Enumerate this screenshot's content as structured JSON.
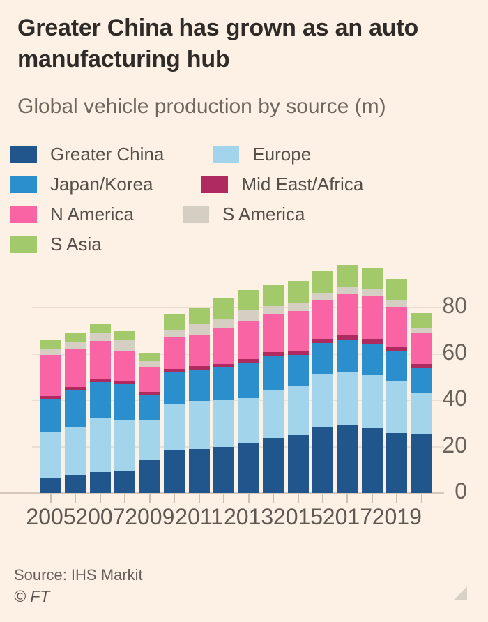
{
  "header": {
    "title": "Greater China has grown as an auto manufacturing hub",
    "subtitle": "Global vehicle production by source (m)"
  },
  "footer": {
    "source": "Source: IHS Markit",
    "copyright": "© FT"
  },
  "colors": {
    "background": "#fdf0e4",
    "title_text": "#2e2b28",
    "subtitle_text": "#6e6861",
    "axis_text": "#6a635c",
    "gridline": "#ecdfd1",
    "tick": "#cdc0b2"
  },
  "chart_data": {
    "type": "bar",
    "stacked": true,
    "title": "Global vehicle production by source (m)",
    "xlabel": "",
    "ylabel": "",
    "grid": true,
    "legend_position": "top",
    "ylim": [
      0,
      100
    ],
    "y_ticks": [
      0,
      20,
      40,
      60,
      80
    ],
    "categories": [
      2005,
      2006,
      2007,
      2008,
      2009,
      2010,
      2011,
      2012,
      2013,
      2014,
      2015,
      2016,
      2017,
      2018,
      2019,
      2020
    ],
    "x_tick_labels": [
      "2005",
      "2007",
      "2009",
      "2011",
      "2013",
      "2015",
      "2017",
      "2019"
    ],
    "series": [
      {
        "name": "Greater China",
        "color": "#20568c",
        "values": [
          6.2,
          7.9,
          8.9,
          9.3,
          14.2,
          18.5,
          19.1,
          19.8,
          21.7,
          23.9,
          24.9,
          28.3,
          29.3,
          28.0,
          26.0,
          25.6
        ]
      },
      {
        "name": "Europe",
        "color": "#a2d5ec",
        "values": [
          20.4,
          20.6,
          23.2,
          22.4,
          17.2,
          20.0,
          20.6,
          20.2,
          19.2,
          20.5,
          21.1,
          23.2,
          22.7,
          23.0,
          22.2,
          17.5
        ]
      },
      {
        "name": "Japan/Korea",
        "color": "#2b8fce",
        "values": [
          14.1,
          15.7,
          15.8,
          15.2,
          11.0,
          13.6,
          13.2,
          14.4,
          15.0,
          14.6,
          13.5,
          13.4,
          14.0,
          13.4,
          13.1,
          10.7
        ]
      },
      {
        "name": "Mid East/Africa",
        "color": "#af2a5e",
        "values": [
          1.3,
          1.5,
          1.5,
          1.5,
          1.3,
          1.6,
          1.8,
          1.4,
          1.8,
          1.7,
          1.7,
          1.8,
          2.0,
          2.3,
          2.0,
          1.8
        ]
      },
      {
        "name": "N America",
        "color": "#f964a5",
        "values": [
          17.5,
          16.4,
          16.2,
          13.2,
          10.9,
          13.4,
          13.4,
          15.6,
          16.7,
          16.4,
          17.5,
          16.8,
          17.8,
          18.2,
          17.0,
          13.4
        ]
      },
      {
        "name": "S America",
        "color": "#d4cec3",
        "values": [
          2.8,
          3.2,
          3.6,
          4.4,
          2.6,
          3.5,
          4.7,
          3.5,
          4.7,
          3.6,
          3.3,
          3.1,
          3.4,
          3.1,
          3.2,
          2.2
        ]
      },
      {
        "name": "S Asia",
        "color": "#a2c96a",
        "values": [
          3.8,
          3.9,
          4.0,
          4.3,
          3.5,
          6.6,
          6.9,
          9.0,
          8.5,
          9.2,
          9.6,
          9.4,
          9.3,
          9.4,
          8.9,
          6.6
        ]
      }
    ],
    "legend_rows": [
      [
        "Greater China",
        "Europe"
      ],
      [
        "Japan/Korea",
        "Mid East/Africa"
      ],
      [
        "N America",
        "S America"
      ],
      [
        "S Asia"
      ]
    ]
  }
}
